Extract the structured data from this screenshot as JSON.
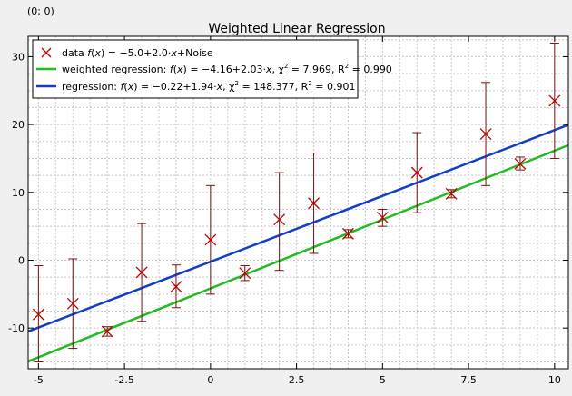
{
  "coord_readout": "(0; 0)",
  "chart_data": {
    "type": "scatter",
    "title": "Weighted Linear Regression",
    "xlabel": "",
    "ylabel": "",
    "xlim": [
      -5.3,
      10.4
    ],
    "ylim": [
      -16,
      33
    ],
    "xticks": [
      -5,
      -2.5,
      0,
      2.5,
      5,
      7.5,
      10
    ],
    "xtick_labels": [
      "-5",
      "-2.5",
      "0",
      "2.5",
      "5",
      "7.5",
      "10"
    ],
    "yticks": [
      -10,
      0,
      10,
      20,
      30
    ],
    "ytick_labels": [
      "-10",
      "0",
      "10",
      "20",
      "30"
    ],
    "grid": true,
    "legend_position": "top-left",
    "points": {
      "x": [
        -5,
        -4,
        -3,
        -2,
        -1,
        0,
        1,
        2,
        3,
        4,
        5,
        6,
        7,
        8,
        9,
        10
      ],
      "y": [
        -8.0,
        -6.4,
        -10.5,
        -1.8,
        -3.9,
        3.0,
        -1.9,
        6.0,
        8.4,
        3.9,
        6.3,
        12.9,
        9.8,
        18.6,
        14.2,
        23.5
      ],
      "err_lo": [
        -15.0,
        -13.0,
        -11.2,
        -9.0,
        -7.0,
        -5.0,
        -3.0,
        -1.5,
        1.0,
        3.3,
        5.0,
        7.0,
        9.2,
        11.0,
        13.3,
        15.0
      ],
      "err_hi": [
        -0.8,
        0.2,
        -9.8,
        5.4,
        -0.7,
        11.0,
        -0.8,
        12.9,
        15.8,
        4.5,
        7.5,
        18.8,
        10.4,
        26.2,
        15.2,
        32.0
      ],
      "color": "#c00000",
      "error_color": "#7a1010"
    },
    "lines": [
      {
        "key": "weighted",
        "intercept": -4.16,
        "slope": 2.03,
        "color": "#22bb22"
      },
      {
        "key": "regression",
        "intercept": -0.22,
        "slope": 1.94,
        "color": "#1040c8"
      }
    ],
    "legend": {
      "data": {
        "prefix": "data ",
        "f": "f",
        "x": "x",
        "formula": ") = −5.0+2.0·",
        "x2": "x",
        "suffix": "+Noise"
      },
      "weighted": {
        "prefix": "weighted regression: ",
        "f": "f",
        "x": "x",
        "formula": ") = −4.16+2.03·",
        "x2": "x",
        "sep": ", χ",
        "sup2": "2",
        "chi": " = 7.969, R",
        "sup2b": "2",
        "r2": " = 0.990"
      },
      "regression": {
        "prefix": "regression: ",
        "f": "f",
        "x": "x",
        "formula": ") = −0.22+1.94·",
        "x2": "x",
        "sep": ", χ",
        "sup2": "2",
        "chi": " = 148.377, R",
        "sup2b": "2",
        "r2": " = 0.901"
      }
    }
  }
}
